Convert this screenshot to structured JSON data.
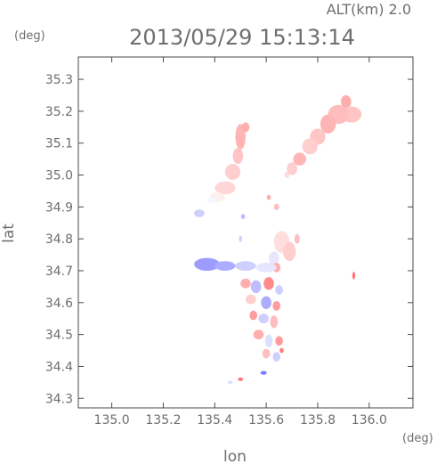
{
  "chart_data": {
    "type": "heatmap",
    "title": "2013/05/29 15:13:14",
    "subtitle": "ALT(km) 2.0",
    "xlabel": "lon",
    "ylabel": "lat",
    "x_unit": "(deg)",
    "y_unit": "(deg)",
    "xlim": [
      134.87,
      136.17
    ],
    "ylim": [
      34.27,
      35.37
    ],
    "x_ticks": [
      135.0,
      135.2,
      135.4,
      135.6,
      135.8,
      136.0
    ],
    "x_tick_labels": [
      "135.0",
      "135.2",
      "135.4",
      "135.6",
      "135.8",
      "136.0"
    ],
    "y_ticks": [
      34.3,
      34.4,
      34.5,
      34.6,
      34.7,
      34.8,
      34.9,
      35.0,
      35.1,
      35.2,
      35.3
    ],
    "y_tick_labels": [
      "34.3",
      "34.4",
      "34.5",
      "34.6",
      "34.7",
      "34.8",
      "34.9",
      "35.0",
      "35.1",
      "35.2",
      "35.3"
    ],
    "grid": false,
    "legend": "none",
    "colormap": {
      "negative": "#5a5aff",
      "zero": "#ffffff",
      "positive": "#ff5a5a"
    },
    "patches": [
      {
        "lon": 135.91,
        "lat": 35.23,
        "rx": 0.02,
        "ry": 0.02,
        "v": 0.5
      },
      {
        "lon": 135.93,
        "lat": 35.19,
        "rx": 0.04,
        "ry": 0.025,
        "v": 0.35
      },
      {
        "lon": 135.88,
        "lat": 35.19,
        "rx": 0.04,
        "ry": 0.03,
        "v": 0.4
      },
      {
        "lon": 135.84,
        "lat": 35.16,
        "rx": 0.03,
        "ry": 0.03,
        "v": 0.45
      },
      {
        "lon": 135.8,
        "lat": 35.12,
        "rx": 0.03,
        "ry": 0.025,
        "v": 0.35
      },
      {
        "lon": 135.77,
        "lat": 35.09,
        "rx": 0.03,
        "ry": 0.025,
        "v": 0.3
      },
      {
        "lon": 135.73,
        "lat": 35.05,
        "rx": 0.025,
        "ry": 0.02,
        "v": 0.45
      },
      {
        "lon": 135.7,
        "lat": 35.02,
        "rx": 0.02,
        "ry": 0.02,
        "v": 0.3
      },
      {
        "lon": 135.68,
        "lat": 35.0,
        "rx": 0.01,
        "ry": 0.01,
        "v": 0.2
      },
      {
        "lon": 135.5,
        "lat": 35.12,
        "rx": 0.02,
        "ry": 0.04,
        "v": 0.45
      },
      {
        "lon": 135.52,
        "lat": 35.15,
        "rx": 0.015,
        "ry": 0.015,
        "v": 0.5
      },
      {
        "lon": 135.49,
        "lat": 35.06,
        "rx": 0.02,
        "ry": 0.025,
        "v": 0.35
      },
      {
        "lon": 135.47,
        "lat": 35.01,
        "rx": 0.03,
        "ry": 0.025,
        "v": 0.3
      },
      {
        "lon": 135.44,
        "lat": 34.96,
        "rx": 0.04,
        "ry": 0.02,
        "v": 0.25
      },
      {
        "lon": 135.41,
        "lat": 34.93,
        "rx": 0.03,
        "ry": 0.015,
        "v": 0.1
      },
      {
        "lon": 135.39,
        "lat": 34.92,
        "rx": 0.02,
        "ry": 0.01,
        "v": -0.05
      },
      {
        "lon": 135.34,
        "lat": 34.88,
        "rx": 0.02,
        "ry": 0.012,
        "v": -0.3
      },
      {
        "lon": 135.64,
        "lat": 34.9,
        "rx": 0.01,
        "ry": 0.01,
        "v": 0.4
      },
      {
        "lon": 135.61,
        "lat": 34.93,
        "rx": 0.008,
        "ry": 0.008,
        "v": 0.5
      },
      {
        "lon": 135.51,
        "lat": 34.87,
        "rx": 0.008,
        "ry": 0.008,
        "v": -0.4
      },
      {
        "lon": 135.5,
        "lat": 34.8,
        "rx": 0.006,
        "ry": 0.01,
        "v": -0.3
      },
      {
        "lon": 135.66,
        "lat": 34.79,
        "rx": 0.03,
        "ry": 0.035,
        "v": 0.2
      },
      {
        "lon": 135.69,
        "lat": 34.76,
        "rx": 0.025,
        "ry": 0.03,
        "v": 0.3
      },
      {
        "lon": 135.72,
        "lat": 34.8,
        "rx": 0.01,
        "ry": 0.015,
        "v": 0.4
      },
      {
        "lon": 135.63,
        "lat": 34.74,
        "rx": 0.02,
        "ry": 0.02,
        "v": -0.15
      },
      {
        "lon": 135.64,
        "lat": 34.71,
        "rx": 0.015,
        "ry": 0.015,
        "v": 0.5
      },
      {
        "lon": 135.37,
        "lat": 34.72,
        "rx": 0.05,
        "ry": 0.02,
        "v": -0.6
      },
      {
        "lon": 135.44,
        "lat": 34.715,
        "rx": 0.04,
        "ry": 0.015,
        "v": -0.5
      },
      {
        "lon": 135.52,
        "lat": 34.715,
        "rx": 0.04,
        "ry": 0.015,
        "v": -0.3
      },
      {
        "lon": 135.6,
        "lat": 34.71,
        "rx": 0.04,
        "ry": 0.015,
        "v": -0.15
      },
      {
        "lon": 135.94,
        "lat": 34.685,
        "rx": 0.006,
        "ry": 0.012,
        "v": 0.8
      },
      {
        "lon": 135.52,
        "lat": 34.66,
        "rx": 0.02,
        "ry": 0.015,
        "v": 0.5
      },
      {
        "lon": 135.56,
        "lat": 34.65,
        "rx": 0.02,
        "ry": 0.02,
        "v": -0.4
      },
      {
        "lon": 135.61,
        "lat": 34.66,
        "rx": 0.02,
        "ry": 0.02,
        "v": 0.7
      },
      {
        "lon": 135.65,
        "lat": 34.64,
        "rx": 0.015,
        "ry": 0.015,
        "v": -0.3
      },
      {
        "lon": 135.54,
        "lat": 34.61,
        "rx": 0.02,
        "ry": 0.015,
        "v": 0.3
      },
      {
        "lon": 135.6,
        "lat": 34.6,
        "rx": 0.02,
        "ry": 0.02,
        "v": -0.5
      },
      {
        "lon": 135.64,
        "lat": 34.59,
        "rx": 0.015,
        "ry": 0.015,
        "v": 0.6
      },
      {
        "lon": 135.55,
        "lat": 34.56,
        "rx": 0.015,
        "ry": 0.015,
        "v": 0.6
      },
      {
        "lon": 135.59,
        "lat": 34.55,
        "rx": 0.02,
        "ry": 0.015,
        "v": -0.3
      },
      {
        "lon": 135.63,
        "lat": 34.54,
        "rx": 0.015,
        "ry": 0.02,
        "v": 0.4
      },
      {
        "lon": 135.57,
        "lat": 34.5,
        "rx": 0.02,
        "ry": 0.015,
        "v": 0.5
      },
      {
        "lon": 135.61,
        "lat": 34.48,
        "rx": 0.015,
        "ry": 0.02,
        "v": -0.2
      },
      {
        "lon": 135.65,
        "lat": 34.48,
        "rx": 0.015,
        "ry": 0.015,
        "v": 0.6
      },
      {
        "lon": 135.6,
        "lat": 34.44,
        "rx": 0.015,
        "ry": 0.015,
        "v": 0.4
      },
      {
        "lon": 135.64,
        "lat": 34.43,
        "rx": 0.015,
        "ry": 0.015,
        "v": -0.3
      },
      {
        "lon": 135.66,
        "lat": 34.45,
        "rx": 0.008,
        "ry": 0.008,
        "v": 0.8
      },
      {
        "lon": 135.59,
        "lat": 34.38,
        "rx": 0.012,
        "ry": 0.006,
        "v": -0.8
      },
      {
        "lon": 135.5,
        "lat": 34.36,
        "rx": 0.01,
        "ry": 0.006,
        "v": 0.8
      },
      {
        "lon": 135.46,
        "lat": 34.35,
        "rx": 0.01,
        "ry": 0.005,
        "v": -0.2
      }
    ]
  }
}
